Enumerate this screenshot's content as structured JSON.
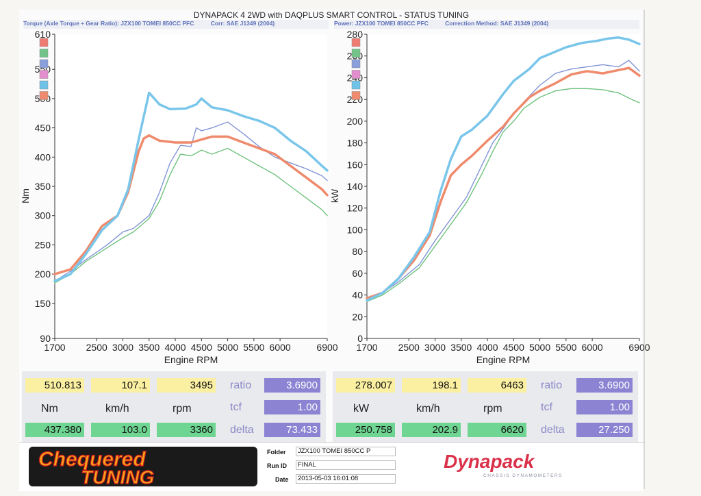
{
  "title": "DYNAPACK 4 2WD with DAQPLUS SMART CONTROL - STATUS TUNING",
  "left_header": {
    "label": "Torque (Axle Torque ÷ Gear Ratio): JZX100 TOMEI 850CC PFC",
    "corr": "Corr: SAE J1349 (2004)"
  },
  "right_header": {
    "label": "Power: JZX100 TOMEI 850CC PFC",
    "corr": "Correction Method: SAE J1349 (2004)"
  },
  "colors": {
    "blue": "#79c6ea",
    "orange": "#ef8a6c",
    "green": "#6ec27c",
    "slate": "#8294d6",
    "legend": [
      "#ef7c74",
      "#72c488",
      "#8aa0dd",
      "#e58ecf",
      "#6fc3e8",
      "#ef8a6c"
    ]
  },
  "chart_data": [
    {
      "type": "line",
      "title": "",
      "xlabel": "Engine RPM",
      "ylabel": "Nm",
      "xlim": [
        1700,
        6900
      ],
      "ylim": [
        90,
        610
      ],
      "xticks": [
        1700,
        2500,
        3000,
        3500,
        4000,
        4500,
        5000,
        5500,
        6000,
        6900
      ],
      "yticks": [
        90,
        150,
        200,
        250,
        300,
        350,
        400,
        450,
        500,
        550,
        610
      ],
      "series": [
        {
          "color": "blue",
          "x": [
            1700,
            2000,
            2300,
            2600,
            2900,
            3100,
            3300,
            3400,
            3500,
            3700,
            3900,
            4200,
            4400,
            4500,
            4700,
            5000,
            5300,
            5600,
            5900,
            6200,
            6500,
            6800,
            6900
          ],
          "y": [
            188,
            200,
            235,
            275,
            300,
            345,
            430,
            470,
            510,
            490,
            482,
            483,
            490,
            500,
            485,
            480,
            470,
            462,
            450,
            428,
            410,
            385,
            377
          ]
        },
        {
          "color": "orange",
          "x": [
            1700,
            2000,
            2300,
            2600,
            2900,
            3100,
            3300,
            3400,
            3500,
            3700,
            4000,
            4300,
            4500,
            4700,
            5000,
            5300,
            5600,
            5900,
            6200,
            6500,
            6800,
            6900
          ],
          "y": [
            200,
            208,
            240,
            282,
            300,
            340,
            410,
            432,
            437,
            428,
            425,
            425,
            430,
            435,
            435,
            425,
            415,
            405,
            385,
            365,
            345,
            335
          ]
        },
        {
          "color": "slate",
          "x": [
            1700,
            2000,
            2300,
            2700,
            3000,
            3200,
            3500,
            3700,
            3900,
            4100,
            4300,
            4400,
            4500,
            4700,
            5000,
            5300,
            5600,
            5900,
            6200,
            6500,
            6800,
            6900
          ],
          "y": [
            188,
            205,
            225,
            250,
            272,
            278,
            300,
            340,
            390,
            420,
            418,
            450,
            445,
            450,
            460,
            440,
            418,
            400,
            390,
            380,
            368,
            360
          ]
        },
        {
          "color": "green",
          "x": [
            1700,
            2000,
            2300,
            2700,
            3000,
            3200,
            3500,
            3700,
            3900,
            4100,
            4300,
            4500,
            4700,
            5000,
            5300,
            5600,
            5900,
            6200,
            6500,
            6800,
            6900
          ],
          "y": [
            185,
            200,
            222,
            245,
            262,
            272,
            295,
            325,
            370,
            405,
            402,
            412,
            405,
            415,
            400,
            385,
            370,
            350,
            330,
            310,
            300
          ]
        }
      ]
    },
    {
      "type": "line",
      "title": "",
      "xlabel": "Engine RPM",
      "ylabel": "kW",
      "xlim": [
        1700,
        6900
      ],
      "ylim": [
        0,
        280
      ],
      "xticks": [
        1700,
        2500,
        3000,
        3500,
        4000,
        4500,
        5000,
        5500,
        6000,
        6900
      ],
      "yticks": [
        0,
        20,
        40,
        60,
        80,
        100,
        120,
        140,
        160,
        180,
        200,
        220,
        240,
        260,
        280
      ],
      "series": [
        {
          "color": "blue",
          "x": [
            1700,
            2000,
            2300,
            2600,
            2900,
            3100,
            3300,
            3500,
            3700,
            4000,
            4300,
            4500,
            4800,
            5000,
            5200,
            5500,
            5800,
            6100,
            6300,
            6500,
            6700,
            6900
          ],
          "y": [
            35,
            42,
            55,
            75,
            98,
            135,
            165,
            186,
            192,
            205,
            225,
            237,
            248,
            258,
            262,
            268,
            272,
            274,
            276,
            277,
            275,
            271
          ]
        },
        {
          "color": "orange",
          "x": [
            1700,
            2000,
            2300,
            2600,
            2900,
            3100,
            3300,
            3500,
            3700,
            4000,
            4300,
            4500,
            4800,
            5000,
            5300,
            5600,
            5900,
            6200,
            6500,
            6700,
            6900
          ],
          "y": [
            37,
            42,
            55,
            72,
            95,
            125,
            150,
            160,
            168,
            182,
            195,
            207,
            222,
            228,
            235,
            243,
            246,
            244,
            247,
            249,
            242
          ]
        },
        {
          "color": "slate",
          "x": [
            1700,
            2000,
            2300,
            2700,
            3000,
            3300,
            3600,
            3900,
            4100,
            4300,
            4500,
            4700,
            5000,
            5300,
            5600,
            5900,
            6200,
            6500,
            6700,
            6900
          ],
          "y": [
            35,
            42,
            52,
            68,
            90,
            110,
            130,
            160,
            180,
            193,
            207,
            218,
            233,
            244,
            248,
            250,
            252,
            250,
            256,
            246
          ]
        },
        {
          "color": "green",
          "x": [
            1700,
            2000,
            2300,
            2700,
            3000,
            3300,
            3600,
            3900,
            4100,
            4300,
            4500,
            4700,
            5000,
            5300,
            5600,
            5900,
            6200,
            6500,
            6800,
            6900
          ],
          "y": [
            34,
            40,
            50,
            65,
            85,
            105,
            125,
            152,
            172,
            190,
            200,
            212,
            222,
            228,
            230,
            230,
            229,
            226,
            219,
            217
          ]
        }
      ]
    }
  ],
  "left_panel": {
    "top": [
      "510.813",
      "107.1",
      "3495"
    ],
    "units": [
      "Nm",
      "km/h",
      "rpm"
    ],
    "bottom": [
      "437.380",
      "103.0",
      "3360"
    ],
    "ratio_label": "ratio",
    "ratio": "3.6900",
    "tcf_label": "tcf",
    "tcf": "1.00",
    "delta_label": "delta",
    "delta": "73.433"
  },
  "right_panel": {
    "top": [
      "278.007",
      "198.1",
      "6463"
    ],
    "units": [
      "kW",
      "km/h",
      "rpm"
    ],
    "bottom": [
      "250.758",
      "202.9",
      "6620"
    ],
    "ratio_label": "ratio",
    "ratio": "3.6900",
    "tcf_label": "tcf",
    "tcf": "1.00",
    "delta_label": "delta",
    "delta": "27.250"
  },
  "footer": {
    "folder_label": "Folder",
    "folder": "JZX100 TOMEI 850CC P",
    "run_label": "Run ID",
    "run": "FINAL",
    "date_label": "Date",
    "date": "2013-05-03 16:01:08",
    "logo_left_line1": "Chequered",
    "logo_left_line2": "TUNING",
    "logo_right": "Dynapack",
    "logo_right_sub": "CHASSIS DYNAMOMETERS"
  }
}
